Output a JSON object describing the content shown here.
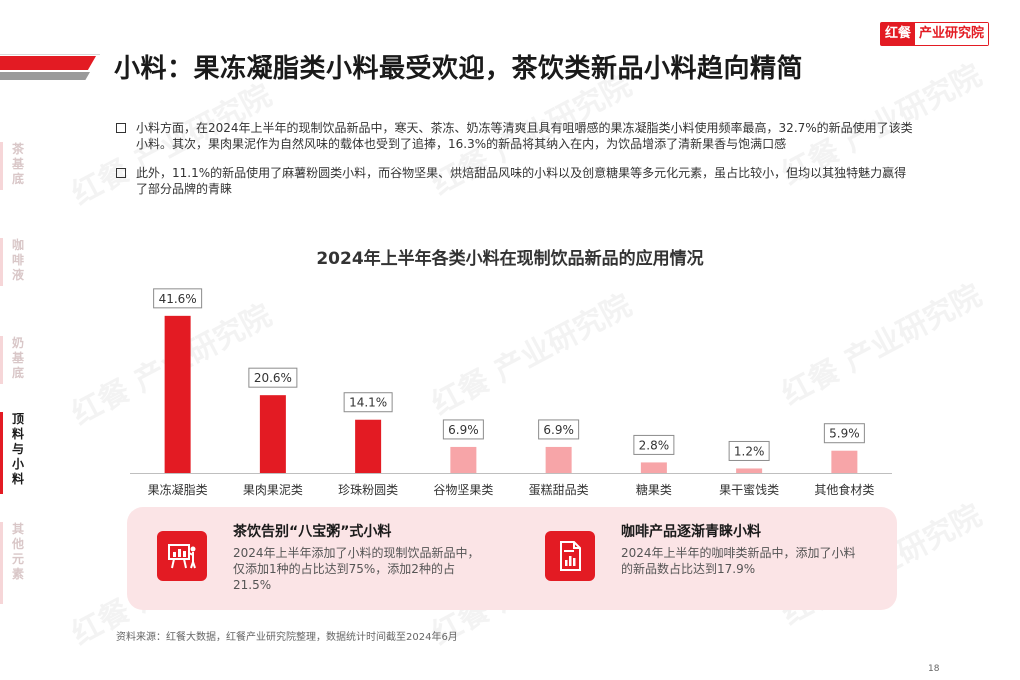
{
  "brand": {
    "mark": "红餐",
    "name": "产业研究院"
  },
  "title": "小料：果冻凝脂类小料最受欢迎，茶饮类新品小料趋向精简",
  "side_nav": [
    {
      "label": "茶基底",
      "active": false
    },
    {
      "label": "咖啡液",
      "active": false
    },
    {
      "label": "奶基底",
      "active": false
    },
    {
      "label": "顶料与小料",
      "active": true
    },
    {
      "label": "其他元素",
      "active": false
    }
  ],
  "bullets": [
    "小料方面，在2024年上半年的现制饮品新品中，寒天、茶冻、奶冻等清爽且具有咀嚼感的果冻凝脂类小料使用频率最高，32.7%的新品使用了该类小料。其次，果肉果泥作为自然风味的载体也受到了追捧，16.3%的新品将其纳入在内，为饮品增添了清新果香与饱满口感",
    "此外，11.1%的新品使用了麻薯粉圆类小料，而谷物坚果、烘焙甜品风味的小料以及创意糖果等多元化元素，虽占比较小，但均以其独特魅力赢得了部分品牌的青睐"
  ],
  "chart_data": {
    "type": "bar",
    "title": "2024年上半年各类小料在现制饮品新品的应用情况",
    "categories": [
      "果冻凝脂类",
      "果肉果泥类",
      "珍珠粉圆类",
      "谷物坚果类",
      "蛋糕甜品类",
      "糖果类",
      "果干蜜饯类",
      "其他食材类"
    ],
    "values": [
      41.6,
      20.6,
      14.1,
      6.9,
      6.9,
      2.8,
      1.2,
      5.9
    ],
    "value_labels": [
      "41.6%",
      "20.6%",
      "14.1%",
      "6.9%",
      "6.9%",
      "2.8%",
      "1.2%",
      "5.9%"
    ],
    "ylim": [
      0,
      45
    ],
    "grid": false,
    "colors": {
      "major": "#e31b23",
      "minor": "#f7a5a8"
    }
  },
  "cards": [
    {
      "title": "茶饮告别“八宝粥”式小料",
      "text": "2024年上半年添加了小料的现制饮品新品中，仅添加1种的占比达到75%，添加2种的占21.5%",
      "icon": "presentation-chart-icon"
    },
    {
      "title": "咖啡产品逐渐青睐小料",
      "text": "2024年上半年的咖啡类新品中，添加了小料的新品数占比达到17.9%",
      "icon": "report-document-icon"
    }
  ],
  "source": "资料来源：红餐大数据，红餐产业研究院整理，数据统计时间截至2024年6月",
  "page_number": "18"
}
